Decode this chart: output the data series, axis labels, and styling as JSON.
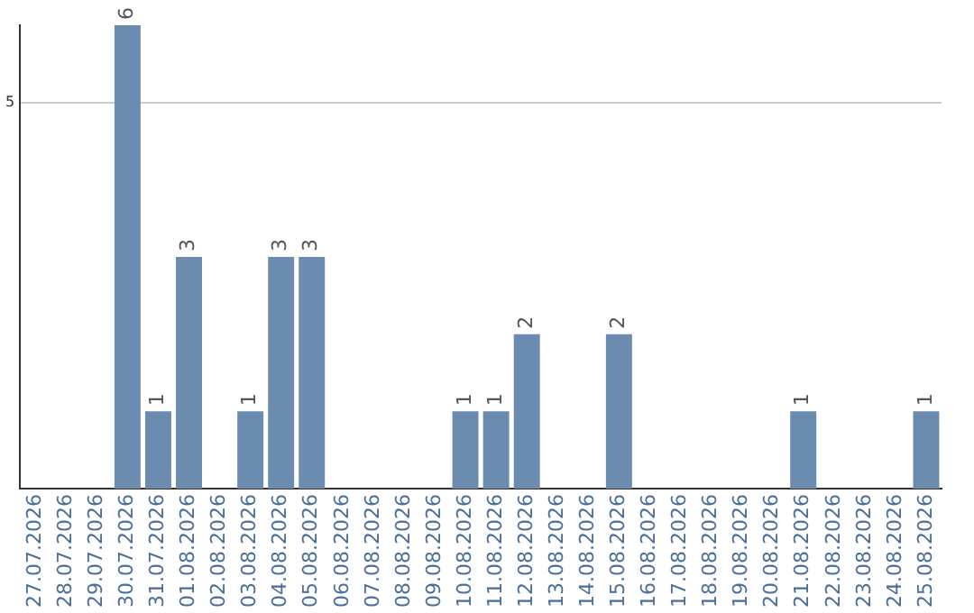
{
  "chart_data": {
    "type": "bar",
    "categories": [
      "27.07.2026",
      "28.07.2026",
      "29.07.2026",
      "30.07.2026",
      "31.07.2026",
      "01.08.2026",
      "02.08.2026",
      "03.08.2026",
      "04.08.2026",
      "05.08.2026",
      "06.08.2026",
      "07.08.2026",
      "08.08.2026",
      "09.08.2026",
      "10.08.2026",
      "11.08.2026",
      "12.08.2026",
      "13.08.2026",
      "14.08.2026",
      "15.08.2026",
      "16.08.2026",
      "17.08.2026",
      "18.08.2026",
      "19.08.2026",
      "20.08.2026",
      "21.08.2026",
      "22.08.2026",
      "23.08.2026",
      "24.08.2026",
      "25.08.2026"
    ],
    "values": [
      0,
      0,
      0,
      6,
      1,
      3,
      0,
      1,
      3,
      3,
      0,
      0,
      0,
      0,
      1,
      1,
      2,
      0,
      0,
      2,
      0,
      0,
      0,
      0,
      0,
      1,
      0,
      0,
      0,
      1
    ],
    "value_labels": [
      null,
      null,
      null,
      "6",
      "1",
      "3",
      null,
      "1",
      "3",
      "3",
      null,
      null,
      null,
      null,
      "1",
      "1",
      "2",
      null,
      null,
      "2",
      null,
      null,
      null,
      null,
      null,
      "1",
      null,
      null,
      null,
      "1"
    ],
    "color": "#6b8cae",
    "ylim": [
      0,
      6
    ],
    "yticks": [
      5
    ],
    "grid": "y",
    "legend": false
  }
}
